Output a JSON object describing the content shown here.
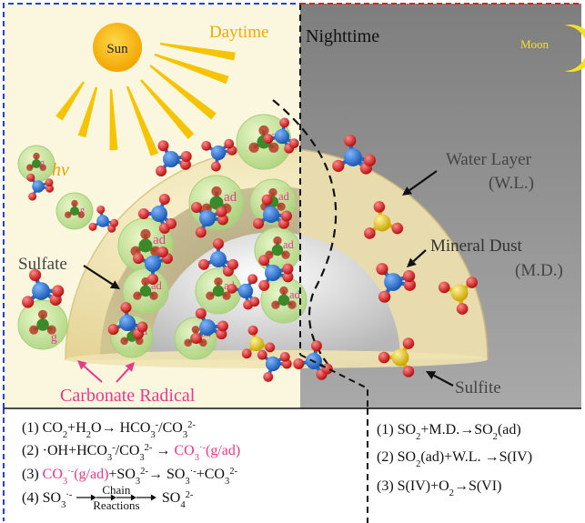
{
  "colors": {
    "day_bg": "#fbf7df",
    "night_bg": "#8e8e8e",
    "day_border": "#2a3fd6",
    "night_border": "#e02020",
    "sun": "#f7b200",
    "ray": "#f5c400",
    "pink": "#e8388a",
    "dust_cream": "#f0e4b0",
    "molecule_blue": "#1f6bc7",
    "molecule_red": "#d41a1a",
    "molecule_yellow": "#e0c01a",
    "molecule_green": "#3a8a2a"
  },
  "labels": {
    "sun": "Sun",
    "daytime": "Daytime",
    "nighttime": "Nighttime",
    "moon": "Moon",
    "hv": "hv",
    "water_layer": "Water Layer",
    "water_layer_abbr": "(W.L.)",
    "mineral_dust": "Mineral Dust",
    "mineral_dust_abbr": "(M.D.)",
    "sulfate": "Sulfate",
    "sulfite": "Sulfite",
    "carbonate_radical": "Carbonate Radical",
    "tag_g": "g",
    "tag_ad": "ad"
  },
  "reactions_day": [
    {
      "num": "(1) ",
      "parts": [
        {
          "t": "CO"
        },
        {
          "t": "2",
          "sub": true
        },
        {
          "t": "+H"
        },
        {
          "t": "2",
          "sub": true
        },
        {
          "t": "O→ HCO"
        },
        {
          "t": "3",
          "sub": true
        },
        {
          "t": "-",
          "sup": true
        },
        {
          "t": "/CO"
        },
        {
          "t": "3",
          "sub": true
        },
        {
          "t": "2-",
          "sup": true
        }
      ]
    },
    {
      "num": "(2) ",
      "parts": [
        {
          "t": "·OH+HCO"
        },
        {
          "t": "3",
          "sub": true
        },
        {
          "t": "-",
          "sup": true
        },
        {
          "t": "/CO"
        },
        {
          "t": "3",
          "sub": true
        },
        {
          "t": "2-",
          "sup": true
        },
        {
          "t": " → "
        },
        {
          "t": "CO",
          "pink": true
        },
        {
          "t": "3",
          "sub": true,
          "pink": true
        },
        {
          "t": "·-",
          "sup": true,
          "pink": true
        },
        {
          "t": "(g/ad)",
          "pink": true
        }
      ]
    },
    {
      "num": "(3) ",
      "parts": [
        {
          "t": "CO",
          "pink": true
        },
        {
          "t": "3",
          "sub": true,
          "pink": true
        },
        {
          "t": "·-",
          "sup": true,
          "pink": true
        },
        {
          "t": "(g/ad)",
          "pink": true
        },
        {
          "t": "+SO"
        },
        {
          "t": "3",
          "sub": true
        },
        {
          "t": "2-",
          "sup": true
        },
        {
          "t": "→ SO"
        },
        {
          "t": "3",
          "sub": true
        },
        {
          "t": "·-",
          "sup": true
        },
        {
          "t": "+CO"
        },
        {
          "t": "3",
          "sub": true
        },
        {
          "t": "2-",
          "sup": true
        }
      ]
    },
    {
      "num": "(4) ",
      "parts": [
        {
          "t": "SO"
        },
        {
          "t": "3",
          "sub": true
        },
        {
          "t": "·-",
          "sup": true
        }
      ],
      "chain_top": "Chain",
      "chain_bottom": "Reactions",
      "tail": [
        {
          "t": "SO"
        },
        {
          "t": "4",
          "sub": true
        },
        {
          "t": "2-",
          "sup": true
        }
      ]
    }
  ],
  "reactions_night": [
    {
      "num": "(1) ",
      "parts": [
        {
          "t": "SO"
        },
        {
          "t": "2",
          "sub": true
        },
        {
          "t": "+M.D.→SO"
        },
        {
          "t": "2",
          "sub": true
        },
        {
          "t": "(ad)"
        }
      ]
    },
    {
      "num": "(2) ",
      "parts": [
        {
          "t": "SO"
        },
        {
          "t": "2",
          "sub": true
        },
        {
          "t": "(ad)+W.L. →S(IV)"
        }
      ]
    },
    {
      "num": "(3) ",
      "parts": [
        {
          "t": "S(IV)+O"
        },
        {
          "t": "2",
          "sub": true
        },
        {
          "t": "→S(VI)"
        }
      ]
    }
  ]
}
